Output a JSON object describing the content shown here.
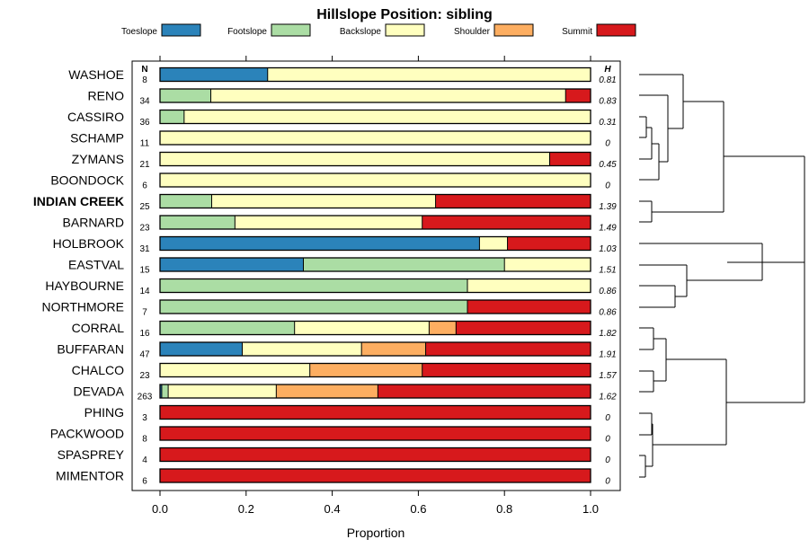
{
  "chart_data": {
    "type": "bar",
    "stacked": "proportion",
    "orientation": "horizontal",
    "title": "Hillslope Position: sibling",
    "xlabel": "Proportion",
    "xlim": [
      0,
      1
    ],
    "xticks": [
      0.0,
      0.2,
      0.4,
      0.6,
      0.8,
      1.0
    ],
    "xtick_labels": [
      "0.0",
      "0.2",
      "0.4",
      "0.6",
      "0.8",
      "1.0"
    ],
    "n_header": "N",
    "h_header": "H",
    "legend": [
      {
        "name": "Toeslope",
        "color": "#2B83BA"
      },
      {
        "name": "Footslope",
        "color": "#ABDDA4"
      },
      {
        "name": "Backslope",
        "color": "#FFFFBF"
      },
      {
        "name": "Shoulder",
        "color": "#FDAE61"
      },
      {
        "name": "Summit",
        "color": "#D7191C"
      }
    ],
    "rows": [
      {
        "name": "WASHOE",
        "n": "8",
        "h": "0.81",
        "bold": false,
        "values": [
          0.25,
          0,
          0.75,
          0,
          0
        ]
      },
      {
        "name": "RENO",
        "n": "34",
        "h": "0.83",
        "bold": false,
        "values": [
          0,
          0.118,
          0.824,
          0,
          0.058
        ]
      },
      {
        "name": "CASSIRO",
        "n": "36",
        "h": "0.31",
        "bold": false,
        "values": [
          0,
          0.056,
          0.944,
          0,
          0
        ]
      },
      {
        "name": "SCHAMP",
        "n": "11",
        "h": "0",
        "bold": false,
        "values": [
          0,
          0,
          1,
          0,
          0
        ]
      },
      {
        "name": "ZYMANS",
        "n": "21",
        "h": "0.45",
        "bold": false,
        "values": [
          0,
          0,
          0.905,
          0,
          0.095
        ]
      },
      {
        "name": "BOONDOCK",
        "n": "6",
        "h": "0",
        "bold": false,
        "values": [
          0,
          0,
          1,
          0,
          0
        ]
      },
      {
        "name": "INDIAN CREEK",
        "n": "25",
        "h": "1.39",
        "bold": true,
        "values": [
          0,
          0.12,
          0.52,
          0,
          0.36
        ]
      },
      {
        "name": "BARNARD",
        "n": "23",
        "h": "1.49",
        "bold": false,
        "values": [
          0,
          0.174,
          0.435,
          0,
          0.391
        ]
      },
      {
        "name": "HOLBROOK",
        "n": "31",
        "h": "1.03",
        "bold": false,
        "values": [
          0.742,
          0,
          0.065,
          0,
          0.193
        ]
      },
      {
        "name": "EASTVAL",
        "n": "15",
        "h": "1.51",
        "bold": false,
        "values": [
          0.333,
          0.467,
          0.2,
          0,
          0
        ]
      },
      {
        "name": "HAYBOURNE",
        "n": "14",
        "h": "0.86",
        "bold": false,
        "values": [
          0,
          0.714,
          0.286,
          0,
          0
        ]
      },
      {
        "name": "NORTHMORE",
        "n": "7",
        "h": "0.86",
        "bold": false,
        "values": [
          0,
          0.714,
          0,
          0,
          0.286
        ]
      },
      {
        "name": "CORRAL",
        "n": "16",
        "h": "1.82",
        "bold": false,
        "values": [
          0,
          0.3125,
          0.3125,
          0.0625,
          0.3125
        ]
      },
      {
        "name": "BUFFARAN",
        "n": "47",
        "h": "1.91",
        "bold": false,
        "values": [
          0.191,
          0,
          0.277,
          0.149,
          0.383
        ]
      },
      {
        "name": "CHALCO",
        "n": "23",
        "h": "1.57",
        "bold": false,
        "values": [
          0,
          0,
          0.348,
          0.261,
          0.391
        ]
      },
      {
        "name": "DEVADA",
        "n": "263",
        "h": "1.62",
        "bold": false,
        "values": [
          0.004,
          0.015,
          0.251,
          0.236,
          0.494
        ]
      },
      {
        "name": "PHING",
        "n": "3",
        "h": "0",
        "bold": false,
        "values": [
          0,
          0,
          0,
          0,
          1
        ]
      },
      {
        "name": "PACKWOOD",
        "n": "8",
        "h": "0",
        "bold": false,
        "values": [
          0,
          0,
          0,
          0,
          1
        ]
      },
      {
        "name": "SPASPREY",
        "n": "4",
        "h": "0",
        "bold": false,
        "values": [
          0,
          0,
          0,
          0,
          1
        ]
      },
      {
        "name": "MIMENTOR",
        "n": "6",
        "h": "0",
        "bold": false,
        "values": [
          0,
          0,
          0,
          0,
          1
        ]
      }
    ]
  }
}
